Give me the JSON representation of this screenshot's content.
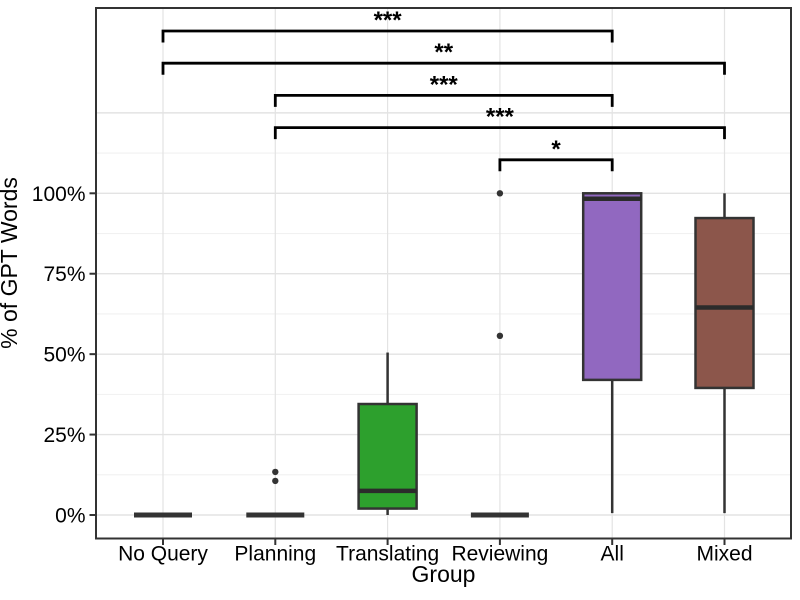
{
  "chart_data": {
    "type": "boxplot",
    "title": "",
    "xlabel": "Group",
    "ylabel": "% of GPT Words",
    "categories": [
      "No Query",
      "Planning",
      "Translating",
      "Reviewing",
      "All",
      "Mixed"
    ],
    "y_ticks": [
      {
        "value": 0,
        "label": "0%"
      },
      {
        "value": 25,
        "label": "25%"
      },
      {
        "value": 50,
        "label": "50%"
      },
      {
        "value": 75,
        "label": "75%"
      },
      {
        "value": 100,
        "label": "100%"
      }
    ],
    "ylim_pct": [
      -7,
      165
    ],
    "grid": {
      "major_on": true,
      "minor_on": true,
      "major_values": [
        0,
        25,
        50,
        75,
        100,
        125
      ],
      "minor_values": [
        12.5,
        37.5,
        62.5,
        87.5,
        112.5
      ]
    },
    "series": [
      {
        "group": "No Query",
        "min": 0,
        "q1": 0,
        "median": 0,
        "q3": 0,
        "max": 0,
        "outliers": [],
        "fill": null
      },
      {
        "group": "Planning",
        "min": 0,
        "q1": 0,
        "median": 0,
        "q3": 0,
        "max": 0,
        "outliers": [
          13.4,
          10.6
        ],
        "fill": null
      },
      {
        "group": "Translating",
        "min": 0,
        "q1": 2,
        "median": 7.5,
        "q3": 34.5,
        "max": 50.5,
        "outliers": [],
        "fill": "#2DA02D"
      },
      {
        "group": "Reviewing",
        "min": 0,
        "q1": 0,
        "median": 0,
        "q3": 0,
        "max": 0,
        "outliers": [
          100,
          55.7
        ],
        "fill": null
      },
      {
        "group": "All",
        "min": 0.6,
        "q1": 42,
        "median": 98.3,
        "q3": 100,
        "max": 100,
        "outliers": [],
        "fill": "#9168C0"
      },
      {
        "group": "Mixed",
        "min": 0.6,
        "q1": 39.5,
        "median": 64.5,
        "q3": 92.3,
        "max": 100,
        "outliers": [],
        "fill": "#8C564B"
      }
    ],
    "significance": [
      {
        "groups": [
          "No Query",
          "All"
        ],
        "label": "***"
      },
      {
        "groups": [
          "No Query",
          "Mixed"
        ],
        "label": "**"
      },
      {
        "groups": [
          "Planning",
          "All"
        ],
        "label": "***"
      },
      {
        "groups": [
          "Planning",
          "Mixed"
        ],
        "label": "***"
      },
      {
        "groups": [
          "Reviewing",
          "All"
        ],
        "label": "*"
      }
    ],
    "colors": {
      "box_outline": "#333333",
      "median_line": "#2b2b2b",
      "whisker": "#333333",
      "outlier_point": "#333333",
      "bracket": "#000000",
      "grid_major": "#e3e3e3",
      "grid_minor": "#f1f1f1",
      "panel_border": "#333333",
      "translating_fill": "#2DA02D",
      "all_fill": "#9168C0",
      "mixed_fill": "#8C564B"
    }
  }
}
